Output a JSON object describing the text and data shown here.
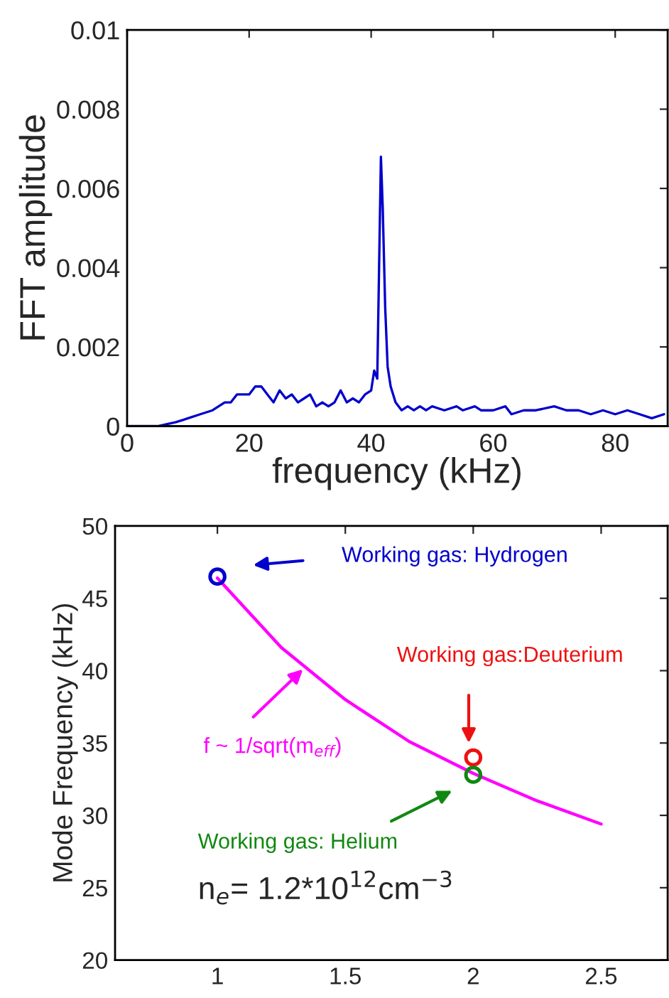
{
  "chart_data": [
    {
      "type": "line",
      "xlabel": "frequency (kHz)",
      "ylabel": "FFT amplitude",
      "xlim": [
        0,
        88.6
      ],
      "ylim": [
        0,
        0.01
      ],
      "xticks": [
        0,
        20,
        40,
        60,
        80
      ],
      "yticks": [
        {
          "value": 0,
          "label": "0"
        },
        0.002,
        0.004,
        0.006,
        0.008,
        0.01
      ],
      "grid": false,
      "legend": false,
      "series": [
        {
          "color": "#0000cc",
          "x": [
            0,
            5,
            8,
            10,
            12,
            14,
            15,
            16,
            17,
            18,
            19,
            20,
            21,
            22,
            23,
            24,
            25,
            26,
            27,
            28,
            29,
            30,
            31,
            32,
            33,
            34,
            35,
            36,
            37,
            38,
            39,
            40,
            40.5,
            41,
            41.3,
            41.6,
            41.9,
            42.3,
            42.7,
            43.2,
            44,
            45,
            46,
            47,
            48,
            49,
            50,
            52,
            54,
            55,
            57,
            58,
            60,
            62,
            63,
            65,
            67,
            70,
            72,
            74,
            76,
            78,
            80,
            82,
            84,
            86,
            88
          ],
          "values": [
            0,
            0,
            0.0001,
            0.0002,
            0.0003,
            0.0004,
            0.0005,
            0.0006,
            0.0006,
            0.0008,
            0.0008,
            0.0008,
            0.001,
            0.001,
            0.0008,
            0.0006,
            0.0009,
            0.0007,
            0.0008,
            0.0006,
            0.0007,
            0.0008,
            0.0005,
            0.0006,
            0.0005,
            0.0006,
            0.0009,
            0.0006,
            0.0007,
            0.0006,
            0.0008,
            0.0009,
            0.0014,
            0.0012,
            0.004,
            0.0068,
            0.0055,
            0.003,
            0.0015,
            0.001,
            0.0006,
            0.0004,
            0.0005,
            0.0004,
            0.0005,
            0.0004,
            0.0005,
            0.0004,
            0.0005,
            0.0004,
            0.0005,
            0.0004,
            0.0004,
            0.0005,
            0.0003,
            0.0004,
            0.0004,
            0.0005,
            0.0004,
            0.0004,
            0.0003,
            0.0004,
            0.0003,
            0.0004,
            0.0003,
            0.0002,
            0.0003
          ]
        }
      ]
    },
    {
      "type": "scatter",
      "ylabel": "Mode Frequency (kHz)",
      "xlim": [
        0.6,
        2.76
      ],
      "ylim": [
        20,
        50
      ],
      "xticks": [
        1,
        1.5,
        2,
        2.5
      ],
      "yticks": [
        20,
        25,
        30,
        35,
        40,
        45,
        50
      ],
      "grid": false,
      "annotations": [
        "n$_{e}$= 1.2*10$^{12}$cm$^{−3}$"
      ],
      "series": [
        {
          "name": "f ~ 1/sqrt(m$_{eff}$)",
          "type": "line",
          "marker": "none",
          "color": "#ff00ff",
          "x": [
            1,
            1.25,
            1.5,
            1.75,
            2,
            2.25,
            2.5
          ],
          "values": [
            46.4,
            41.6,
            38.0,
            35.1,
            32.9,
            31.0,
            29.4
          ]
        },
        {
          "name": "Working gas: Hydrogen",
          "marker": "circle",
          "color": "#0000cc",
          "x": [
            1
          ],
          "values": [
            46.5
          ]
        },
        {
          "name": "Working gas:Deuterium",
          "marker": "circle",
          "color": "#ee1111",
          "x": [
            2
          ],
          "values": [
            34.0
          ]
        },
        {
          "name": "Working gas: Helium",
          "marker": "circle",
          "color": "#118811",
          "x": [
            2
          ],
          "values": [
            32.8
          ]
        }
      ]
    }
  ]
}
